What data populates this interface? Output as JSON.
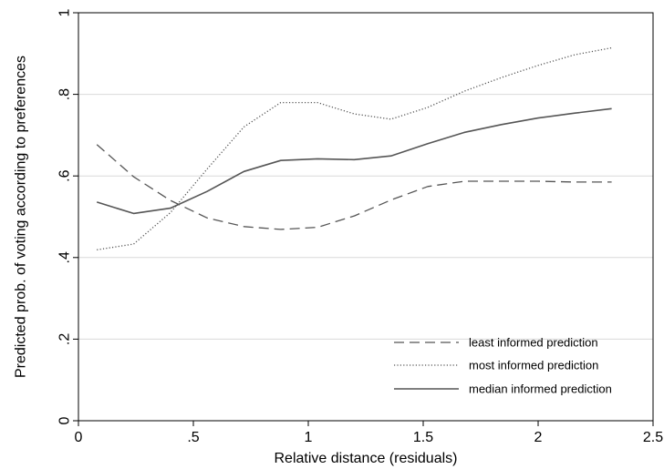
{
  "chart_data": {
    "type": "line",
    "xlabel": "Relative distance (residuals)",
    "ylabel": "Predicted prob. of voting according to preferences",
    "xlim": [
      0,
      2.5
    ],
    "ylim": [
      0,
      1
    ],
    "xticks": [
      0,
      0.5,
      1,
      1.5,
      2,
      2.5
    ],
    "xtick_labels": [
      "0",
      ".5",
      "1",
      "1.5",
      "2",
      "2.5"
    ],
    "yticks": [
      0,
      0.2,
      0.4,
      0.6,
      0.8,
      1
    ],
    "ytick_labels": [
      "0",
      ".2",
      ".4",
      ".6",
      ".8",
      "1"
    ],
    "grid": "horizontal",
    "legend_position": "bottom-right",
    "series": [
      {
        "name": "least informed prediction",
        "style": "dashed",
        "color": "#555555",
        "x": [
          0.08,
          0.24,
          0.4,
          0.56,
          0.72,
          0.88,
          1.04,
          1.2,
          1.36,
          1.52,
          1.68,
          1.84,
          2.0,
          2.16,
          2.32
        ],
        "y": [
          0.677,
          0.598,
          0.54,
          0.497,
          0.476,
          0.469,
          0.474,
          0.502,
          0.541,
          0.574,
          0.587,
          0.587,
          0.587,
          0.585,
          0.585
        ]
      },
      {
        "name": "most informed prediction",
        "style": "dotted",
        "color": "#555555",
        "x": [
          0.08,
          0.24,
          0.4,
          0.56,
          0.72,
          0.88,
          1.04,
          1.2,
          1.36,
          1.52,
          1.68,
          1.84,
          2.0,
          2.16,
          2.32
        ],
        "y": [
          0.419,
          0.433,
          0.51,
          0.617,
          0.72,
          0.78,
          0.78,
          0.752,
          0.739,
          0.768,
          0.808,
          0.841,
          0.871,
          0.897,
          0.914
        ]
      },
      {
        "name": "median informed prediction",
        "style": "solid",
        "color": "#555555",
        "x": [
          0.08,
          0.24,
          0.4,
          0.56,
          0.72,
          0.88,
          1.04,
          1.2,
          1.36,
          1.52,
          1.68,
          1.84,
          2.0,
          2.16,
          2.32
        ],
        "y": [
          0.536,
          0.508,
          0.521,
          0.562,
          0.611,
          0.638,
          0.642,
          0.64,
          0.649,
          0.679,
          0.707,
          0.726,
          0.742,
          0.754,
          0.765
        ]
      }
    ]
  }
}
